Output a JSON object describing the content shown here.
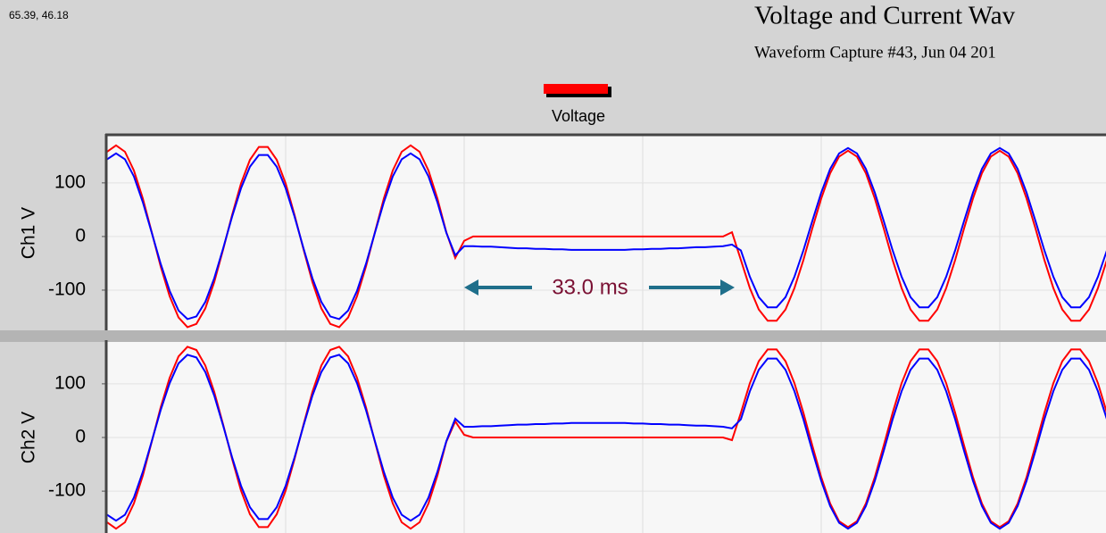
{
  "cursor_readout": "65.39, 46.18",
  "chart_data": [
    {
      "type": "line",
      "title": "Voltage and Current Wav",
      "subtitle": "Waveform Capture #43, Jun 04 201",
      "ylabel": "Ch1 V",
      "annotation": "33.0 ms",
      "xlim": [
        0,
        112
      ],
      "xticks": [
        20,
        40,
        60,
        80,
        100
      ],
      "ylim": [
        -175,
        188
      ],
      "yticks": [
        100,
        0,
        -100
      ],
      "grid": true,
      "x": [
        0,
        1,
        2,
        3,
        4,
        5,
        6,
        7,
        8,
        9,
        10,
        11,
        12,
        13,
        14,
        15,
        16,
        17,
        18,
        19,
        20,
        21,
        22,
        23,
        24,
        25,
        26,
        27,
        28,
        29,
        30,
        31,
        32,
        33,
        34,
        35,
        36,
        37,
        38,
        39,
        40,
        41,
        42,
        43,
        44,
        45,
        46,
        47,
        48,
        49,
        50,
        51,
        52,
        53,
        54,
        55,
        56,
        57,
        58,
        59,
        60,
        61,
        62,
        63,
        64,
        65,
        66,
        67,
        68,
        69,
        70,
        71,
        72,
        73,
        74,
        75,
        76,
        77,
        78,
        79,
        80,
        81,
        82,
        83,
        84,
        85,
        86,
        87,
        88,
        89,
        90,
        91,
        92,
        93,
        94,
        95,
        96,
        97,
        98,
        99,
        100,
        101,
        102,
        103,
        104,
        105,
        106,
        107,
        108,
        109,
        110,
        111,
        112
      ],
      "series": [
        {
          "name": "Voltage",
          "color": "#ff0000",
          "values": [
            158,
            170,
            158,
            123,
            71,
            8,
            -56,
            -111,
            -151,
            -169,
            -163,
            -134,
            -85,
            -24,
            40,
            99,
            143,
            167,
            167,
            143,
            99,
            40,
            -24,
            -85,
            -134,
            -163,
            -169,
            -151,
            -111,
            -56,
            8,
            71,
            123,
            158,
            170,
            158,
            123,
            71,
            8,
            -40,
            -8,
            0,
            0,
            0,
            0,
            0,
            0,
            0,
            0,
            0,
            0,
            0,
            0,
            0,
            0,
            0,
            0,
            0,
            0,
            0,
            0,
            0,
            0,
            0,
            0,
            0,
            0,
            0,
            0,
            0,
            8,
            -44,
            -96,
            -136,
            -157,
            -157,
            -136,
            -96,
            -44,
            15,
            71,
            118,
            149,
            160,
            149,
            118,
            71,
            15,
            -44,
            -96,
            -136,
            -157,
            -157,
            -136,
            -96,
            -44,
            15,
            71,
            118,
            149,
            160,
            149,
            118,
            71,
            15,
            -44,
            -96,
            -136,
            -157,
            -157,
            -136,
            -96,
            -44
          ]
        },
        {
          "color": "#0000ff",
          "values": [
            144,
            155,
            144,
            112,
            64,
            7,
            -51,
            -101,
            -138,
            -154,
            -149,
            -122,
            -78,
            -22,
            37,
            90,
            130,
            152,
            152,
            130,
            90,
            37,
            -22,
            -78,
            -122,
            -149,
            -154,
            -138,
            -101,
            -51,
            7,
            64,
            112,
            144,
            155,
            144,
            112,
            64,
            7,
            -35,
            -18,
            -18,
            -19,
            -19,
            -20,
            -21,
            -22,
            -22,
            -23,
            -23,
            -24,
            -24,
            -25,
            -25,
            -25,
            -25,
            -25,
            -25,
            -25,
            -24,
            -24,
            -23,
            -23,
            -22,
            -22,
            -21,
            -20,
            -20,
            -19,
            -18,
            -15,
            -26,
            -75,
            -113,
            -132,
            -132,
            -113,
            -75,
            -26,
            29,
            82,
            126,
            155,
            165,
            155,
            126,
            82,
            29,
            -26,
            -75,
            -113,
            -132,
            -132,
            -113,
            -75,
            -26,
            29,
            82,
            126,
            155,
            165,
            155,
            126,
            82,
            29,
            -26,
            -75,
            -113,
            -132,
            -132,
            -113,
            -75,
            -26
          ]
        }
      ]
    },
    {
      "type": "line",
      "ylabel": "Ch2 V",
      "xlim": [
        0,
        112
      ],
      "xticks": [
        20,
        40,
        60,
        80,
        100
      ],
      "ylim": [
        -178,
        178
      ],
      "yticks": [
        100,
        0,
        -100
      ],
      "grid": true,
      "x": [
        0,
        1,
        2,
        3,
        4,
        5,
        6,
        7,
        8,
        9,
        10,
        11,
        12,
        13,
        14,
        15,
        16,
        17,
        18,
        19,
        20,
        21,
        22,
        23,
        24,
        25,
        26,
        27,
        28,
        29,
        30,
        31,
        32,
        33,
        34,
        35,
        36,
        37,
        38,
        39,
        40,
        41,
        42,
        43,
        44,
        45,
        46,
        47,
        48,
        49,
        50,
        51,
        52,
        53,
        54,
        55,
        56,
        57,
        58,
        59,
        60,
        61,
        62,
        63,
        64,
        65,
        66,
        67,
        68,
        69,
        70,
        71,
        72,
        73,
        74,
        75,
        76,
        77,
        78,
        79,
        80,
        81,
        82,
        83,
        84,
        85,
        86,
        87,
        88,
        89,
        90,
        91,
        92,
        93,
        94,
        95,
        96,
        97,
        98,
        99,
        100,
        101,
        102,
        103,
        104,
        105,
        106,
        107,
        108,
        109,
        110,
        111,
        112
      ],
      "series": [
        {
          "color": "#ff0000",
          "values": [
            -158,
            -170,
            -158,
            -123,
            -71,
            -8,
            56,
            111,
            151,
            169,
            163,
            134,
            85,
            24,
            -40,
            -99,
            -143,
            -167,
            -167,
            -143,
            -99,
            -40,
            24,
            85,
            134,
            163,
            169,
            151,
            111,
            56,
            -8,
            -71,
            -123,
            -158,
            -170,
            -158,
            -123,
            -71,
            -8,
            30,
            5,
            0,
            0,
            0,
            0,
            0,
            0,
            0,
            0,
            0,
            0,
            0,
            0,
            0,
            0,
            0,
            0,
            0,
            0,
            0,
            0,
            0,
            0,
            0,
            0,
            0,
            0,
            0,
            0,
            0,
            -5,
            46,
            101,
            142,
            164,
            164,
            142,
            101,
            46,
            -15,
            -74,
            -123,
            -156,
            -167,
            -156,
            -123,
            -74,
            -15,
            46,
            101,
            142,
            164,
            164,
            142,
            101,
            46,
            -15,
            -74,
            -123,
            -156,
            -167,
            -156,
            -123,
            -74,
            -15,
            46,
            101,
            142,
            164,
            164,
            142,
            101,
            46
          ]
        },
        {
          "color": "#0000ff",
          "values": [
            -144,
            -155,
            -144,
            -112,
            -64,
            -7,
            51,
            101,
            138,
            154,
            149,
            122,
            78,
            22,
            -37,
            -90,
            -130,
            -152,
            -152,
            -130,
            -90,
            -37,
            22,
            78,
            122,
            149,
            154,
            138,
            101,
            51,
            -7,
            -64,
            -112,
            -144,
            -155,
            -144,
            -112,
            -64,
            -7,
            35,
            20,
            20,
            21,
            21,
            22,
            23,
            24,
            24,
            25,
            25,
            26,
            26,
            27,
            27,
            27,
            27,
            27,
            27,
            27,
            26,
            26,
            25,
            25,
            24,
            24,
            23,
            22,
            22,
            21,
            20,
            17,
            34,
            86,
            126,
            147,
            147,
            126,
            86,
            34,
            -25,
            -81,
            -128,
            -159,
            -170,
            -159,
            -128,
            -81,
            -25,
            34,
            86,
            126,
            147,
            147,
            126,
            86,
            34,
            -25,
            -81,
            -128,
            -159,
            -170,
            -159,
            -128,
            -81,
            -25,
            34,
            86,
            126,
            147,
            147,
            126,
            86,
            34
          ]
        }
      ]
    }
  ]
}
